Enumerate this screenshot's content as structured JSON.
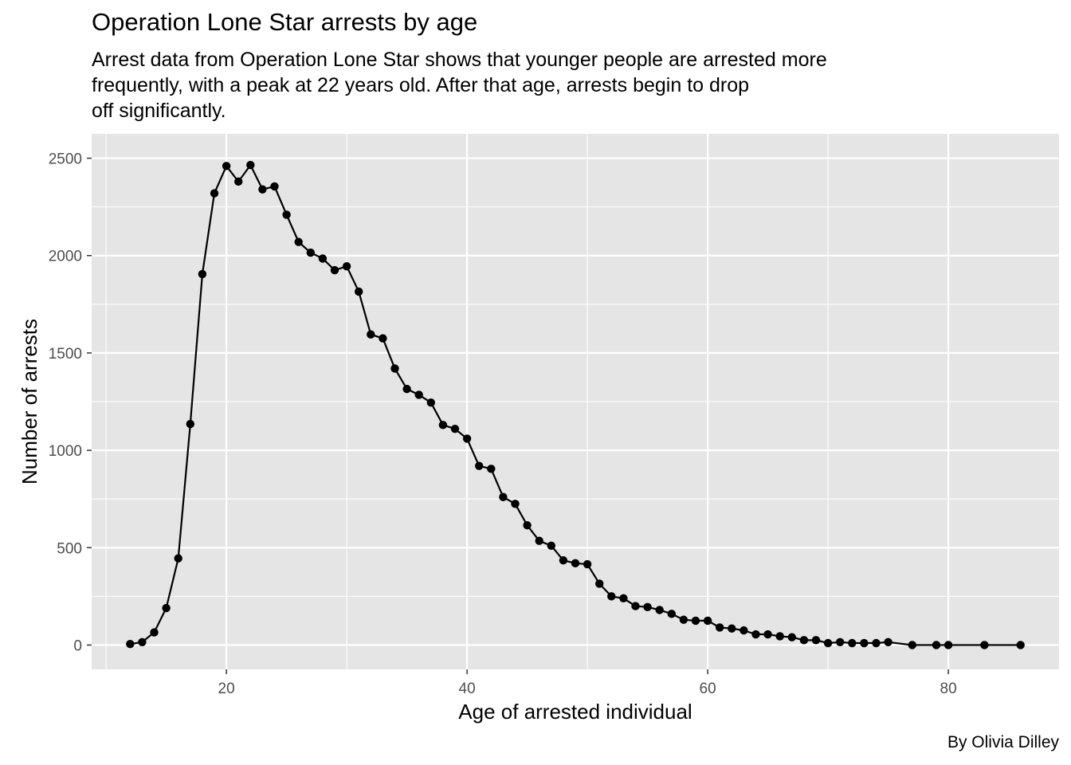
{
  "chart_data": {
    "type": "line",
    "title": "Operation Lone Star arrests by age",
    "subtitle": "Arrest data from Operation Lone Star shows that younger people are arrested more\nfrequently, with a peak at 22 years old. After that age, arrests begin to drop\noff significantly.",
    "caption": "By Olivia Dilley",
    "xlabel": "Age of arrested individual",
    "ylabel": "Number of arrests",
    "xlim": [
      8.8,
      89.2
    ],
    "ylim": [
      -125,
      2625
    ],
    "x_ticks": [
      20,
      40,
      60,
      80
    ],
    "y_ticks": [
      0,
      500,
      1000,
      1500,
      2000,
      2500
    ],
    "grid": true,
    "legend": "none",
    "colors": {
      "panel": "#e5e5e5",
      "grid": "#ffffff",
      "line": "#000000",
      "tick_text": "#4d4d4d"
    },
    "series": [
      {
        "x": [
          12,
          13,
          14,
          15,
          16,
          17,
          18,
          19,
          20,
          21,
          22,
          23,
          24,
          25,
          26,
          27,
          28,
          29,
          30,
          31,
          32,
          33,
          34,
          35,
          36,
          37,
          38,
          39,
          40,
          41,
          42,
          43,
          44,
          45,
          46,
          47,
          48,
          49,
          50,
          51,
          52,
          53,
          54,
          55,
          56,
          57,
          58,
          59,
          60,
          61,
          62,
          63,
          64,
          65,
          66,
          67,
          68,
          69,
          70,
          71,
          72,
          73,
          74,
          75,
          77,
          79,
          80,
          83,
          86
        ],
        "y": [
          5,
          15,
          65,
          190,
          445,
          1135,
          1905,
          2320,
          2460,
          2380,
          2465,
          2340,
          2355,
          2210,
          2070,
          2015,
          1985,
          1925,
          1945,
          1815,
          1595,
          1575,
          1420,
          1315,
          1285,
          1245,
          1130,
          1110,
          1060,
          920,
          905,
          760,
          725,
          615,
          535,
          510,
          435,
          420,
          415,
          315,
          250,
          240,
          200,
          195,
          180,
          160,
          130,
          125,
          125,
          90,
          85,
          75,
          55,
          55,
          45,
          40,
          25,
          25,
          10,
          15,
          10,
          10,
          10,
          15,
          0,
          0,
          0,
          0,
          0
        ]
      }
    ]
  }
}
